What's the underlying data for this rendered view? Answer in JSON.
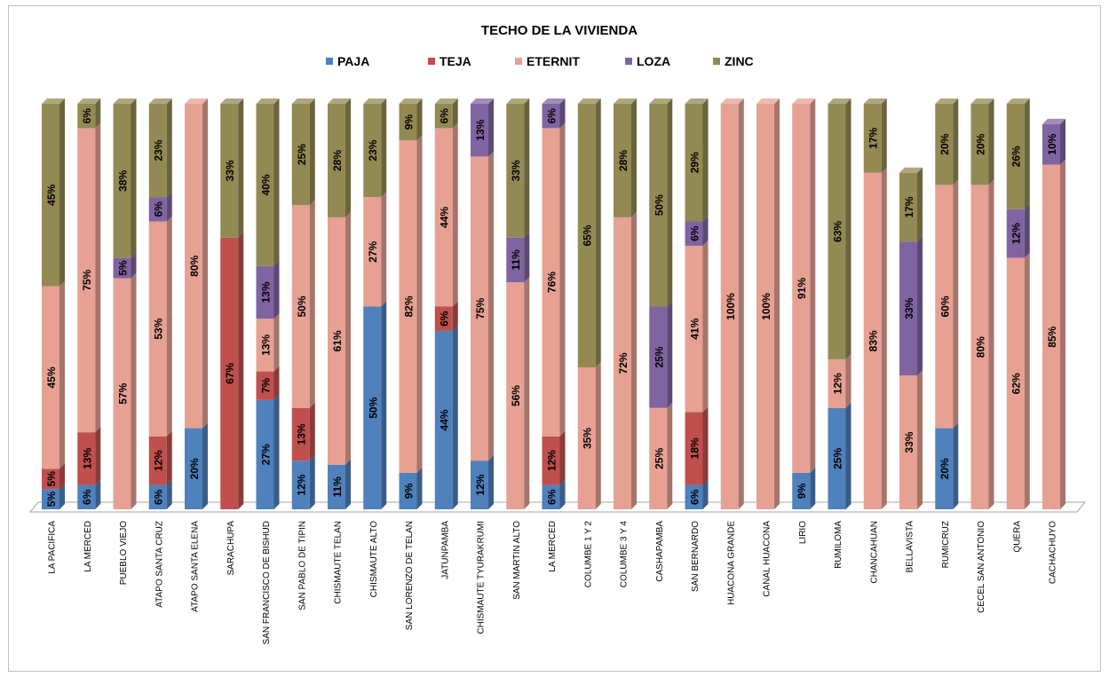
{
  "chart_data": {
    "type": "bar",
    "stacked": true,
    "title": "TECHO DE LA VIVIENDA",
    "legend_position": "top",
    "ylim": [
      0,
      100
    ],
    "categories": [
      "LA PACIFICA",
      "LA MERCED",
      "PUEBLO VIEJO",
      "ATAPO SANTA CRUZ",
      "ATAPO SANTA ELENA",
      "SARACHUPA",
      "SAN FRANCISCO DE BISHUD",
      "SAN PABLO DE TIPIN",
      "CHISMAUTE TELAN",
      "CHISMAUTE ALTO",
      "SAN LORENZO DE TELAN",
      "JATUNPAMBA",
      "CHISMAUTE TYURAKRUMI",
      "SAN MARTIN ALTO",
      "LA MERCED",
      "COLUMBE 1 Y 2",
      "COLUMBE 3 Y 4",
      "CASHAPAMBA",
      "SAN BERNARDO",
      "HUACONA GRANDE",
      "CANAL HUACONA",
      "LIRIO",
      "RUMILOMA",
      "CHANCAHUAN",
      "BELLAVISTA",
      "RUMICRUZ",
      "CECEL SAN ANTONIO",
      "QUERA",
      "CACHACHUYO"
    ],
    "series": [
      {
        "name": "PAJA",
        "color": "#4f81bd",
        "values": [
          5,
          6,
          0,
          6,
          20,
          0,
          27,
          12,
          11,
          50,
          9,
          44,
          12,
          0,
          6,
          0,
          0,
          0,
          6,
          0,
          0,
          9,
          25,
          0,
          0,
          20,
          0,
          0,
          0
        ]
      },
      {
        "name": "TEJA",
        "color": "#c0504d",
        "values": [
          5,
          13,
          0,
          12,
          0,
          67,
          7,
          13,
          0,
          0,
          0,
          6,
          0,
          0,
          12,
          0,
          0,
          0,
          18,
          0,
          0,
          0,
          0,
          0,
          0,
          0,
          0,
          0,
          0
        ]
      },
      {
        "name": "ETERNIT",
        "color": "#e6a193",
        "values": [
          45,
          75,
          57,
          53,
          80,
          0,
          13,
          50,
          61,
          27,
          82,
          44,
          75,
          56,
          76,
          35,
          72,
          25,
          41,
          100,
          100,
          91,
          12,
          83,
          33,
          60,
          80,
          62,
          85
        ]
      },
      {
        "name": "LOZA",
        "color": "#8064a2",
        "values": [
          0,
          0,
          5,
          6,
          0,
          0,
          13,
          0,
          0,
          0,
          0,
          0,
          13,
          11,
          6,
          0,
          0,
          25,
          6,
          0,
          0,
          0,
          0,
          0,
          33,
          0,
          0,
          12,
          10
        ]
      },
      {
        "name": "ZINC",
        "color": "#938953",
        "values": [
          45,
          6,
          38,
          23,
          0,
          33,
          40,
          25,
          28,
          23,
          9,
          6,
          0,
          33,
          0,
          65,
          28,
          50,
          29,
          0,
          0,
          0,
          63,
          17,
          17,
          20,
          20,
          26,
          0
        ]
      }
    ]
  }
}
